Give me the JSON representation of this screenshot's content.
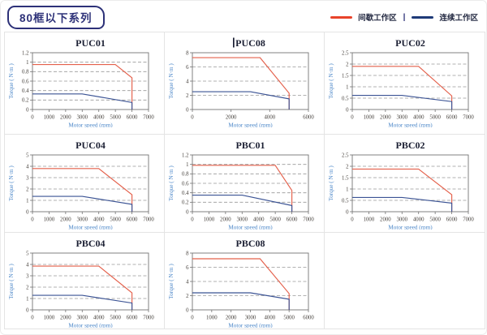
{
  "header": {
    "badge": "80框以下系列",
    "legend": {
      "intermittent_label": "间歇工作区",
      "separator": "|",
      "continuous_label": "连续工作区"
    }
  },
  "colors": {
    "legend_intermittent": "#e8432a",
    "legend_continuous": "#1e3a78",
    "chart_red": "#e4604b",
    "chart_blue": "#3b5394",
    "gridline": "#999999",
    "frame": "#737373",
    "tick_text": "#443f3a",
    "axis_label": "#4a86c8",
    "title_text": "#1b1f33",
    "badge": "#2d3178",
    "cell_border": "#e4e4e4"
  },
  "chart_data": [
    {
      "type": "line",
      "title": "PUC01",
      "xlabel": "Motor speed (rpm)",
      "ylabel": "Torque ( N·m )",
      "xlim": [
        0,
        7000
      ],
      "ylim": [
        0,
        1.2
      ],
      "xticks": [
        0,
        1000,
        2000,
        3000,
        4000,
        5000,
        6000,
        7000
      ],
      "yticks": [
        0,
        0.2,
        0.4,
        0.6,
        0.8,
        1,
        1.2
      ],
      "grid": "dashed-horizontal",
      "legend_position": "page-top-right",
      "series": [
        {
          "name": "间歇工作区",
          "role": "intermittent",
          "points": [
            [
              0,
              0.95
            ],
            [
              5000,
              0.95
            ],
            [
              6000,
              0.67
            ],
            [
              6000,
              0
            ]
          ]
        },
        {
          "name": "连续工作区",
          "role": "continuous",
          "points": [
            [
              0,
              0.33
            ],
            [
              3000,
              0.33
            ],
            [
              6000,
              0.15
            ],
            [
              6000,
              0
            ]
          ]
        }
      ]
    },
    {
      "type": "line",
      "title": "PUC08",
      "text_cursor": true,
      "xlabel": "Motor speed (rpm)",
      "ylabel": "Torque ( N·m )",
      "xlim": [
        0,
        6000
      ],
      "ylim": [
        0,
        8
      ],
      "xticks": [
        0,
        2000,
        4000,
        6000
      ],
      "yticks": [
        0,
        2,
        4,
        6,
        8
      ],
      "grid": "dashed-horizontal",
      "legend_position": "page-top-right",
      "series": [
        {
          "name": "间歇工作区",
          "role": "intermittent",
          "points": [
            [
              0,
              7.3
            ],
            [
              3500,
              7.3
            ],
            [
              5000,
              2.3
            ],
            [
              5000,
              0
            ]
          ]
        },
        {
          "name": "连续工作区",
          "role": "continuous",
          "points": [
            [
              0,
              2.5
            ],
            [
              3000,
              2.5
            ],
            [
              5000,
              1.5
            ],
            [
              5000,
              0
            ]
          ]
        }
      ]
    },
    {
      "type": "line",
      "title": "PUC02",
      "xlabel": "Motor speed (rpm)",
      "ylabel": "Torque ( N·m )",
      "xlim": [
        0,
        7000
      ],
      "ylim": [
        0,
        2.5
      ],
      "xticks": [
        0,
        1000,
        2000,
        3000,
        4000,
        5000,
        6000,
        7000
      ],
      "yticks": [
        0,
        0.5,
        1,
        1.5,
        2,
        2.5
      ],
      "grid": "dashed-horizontal",
      "legend_position": "page-top-right",
      "series": [
        {
          "name": "间歇工作区",
          "role": "intermittent",
          "points": [
            [
              0,
              1.9
            ],
            [
              4000,
              1.9
            ],
            [
              6000,
              0.6
            ],
            [
              6000,
              0
            ]
          ]
        },
        {
          "name": "连续工作区",
          "role": "continuous",
          "points": [
            [
              0,
              0.62
            ],
            [
              3000,
              0.62
            ],
            [
              6000,
              0.35
            ],
            [
              6000,
              0
            ]
          ]
        }
      ]
    },
    {
      "type": "line",
      "title": "PUC04",
      "xlabel": "Motor speed (rpm)",
      "ylabel": "Torque ( N·m )",
      "xlim": [
        0,
        7000
      ],
      "ylim": [
        0,
        5
      ],
      "xticks": [
        0,
        1000,
        2000,
        3000,
        4000,
        5000,
        6000,
        7000
      ],
      "yticks": [
        0,
        1,
        2,
        3,
        4,
        5
      ],
      "grid": "dashed-horizontal",
      "legend_position": "page-top-right",
      "series": [
        {
          "name": "间歇工作区",
          "role": "intermittent",
          "points": [
            [
              0,
              3.8
            ],
            [
              4000,
              3.8
            ],
            [
              6000,
              1.5
            ],
            [
              6000,
              0
            ]
          ]
        },
        {
          "name": "连续工作区",
          "role": "continuous",
          "points": [
            [
              0,
              1.35
            ],
            [
              3000,
              1.35
            ],
            [
              6000,
              0.65
            ],
            [
              6000,
              0
            ]
          ]
        }
      ]
    },
    {
      "type": "line",
      "title": "PBC01",
      "xlabel": "Motor speed (rpm)",
      "ylabel": "Torque ( N·m )",
      "xlim": [
        0,
        7000
      ],
      "ylim": [
        0,
        1.2
      ],
      "xticks": [
        0,
        1000,
        2000,
        3000,
        4000,
        5000,
        6000,
        7000
      ],
      "yticks": [
        0,
        0.2,
        0.4,
        0.6,
        0.8,
        1,
        1.2
      ],
      "grid": "dashed-horizontal",
      "legend_position": "page-top-right",
      "series": [
        {
          "name": "间歇工作区",
          "role": "intermittent",
          "points": [
            [
              0,
              0.98
            ],
            [
              5000,
              0.98
            ],
            [
              6000,
              0.45
            ],
            [
              6000,
              0
            ]
          ]
        },
        {
          "name": "连续工作区",
          "role": "continuous",
          "points": [
            [
              0,
              0.35
            ],
            [
              3000,
              0.35
            ],
            [
              6000,
              0.13
            ],
            [
              6000,
              0
            ]
          ]
        }
      ]
    },
    {
      "type": "line",
      "title": "PBC02",
      "xlabel": "Motor speed (rpm)",
      "ylabel": "Torque ( N·m )",
      "xlim": [
        0,
        7000
      ],
      "ylim": [
        0,
        2.5
      ],
      "xticks": [
        0,
        1000,
        2000,
        3000,
        4000,
        5000,
        6000,
        7000
      ],
      "yticks": [
        0,
        0.5,
        1,
        1.5,
        2,
        2.5
      ],
      "grid": "dashed-horizontal",
      "legend_position": "page-top-right",
      "series": [
        {
          "name": "间歇工作区",
          "role": "intermittent",
          "points": [
            [
              0,
              1.88
            ],
            [
              4000,
              1.88
            ],
            [
              6000,
              0.75
            ],
            [
              6000,
              0
            ]
          ]
        },
        {
          "name": "连续工作区",
          "role": "continuous",
          "points": [
            [
              0,
              0.63
            ],
            [
              3000,
              0.63
            ],
            [
              6000,
              0.38
            ],
            [
              6000,
              0
            ]
          ]
        }
      ]
    },
    {
      "type": "line",
      "title": "PBC04",
      "xlabel": "Motor speed (rpm)",
      "ylabel": "Torque ( N·m )",
      "xlim": [
        0,
        7000
      ],
      "ylim": [
        0,
        5
      ],
      "xticks": [
        0,
        1000,
        2000,
        3000,
        4000,
        5000,
        6000,
        7000
      ],
      "yticks": [
        0,
        1,
        2,
        3,
        4,
        5
      ],
      "grid": "dashed-horizontal",
      "legend_position": "page-top-right",
      "series": [
        {
          "name": "间歇工作区",
          "role": "intermittent",
          "points": [
            [
              0,
              3.85
            ],
            [
              4000,
              3.85
            ],
            [
              6000,
              1.5
            ],
            [
              6000,
              0
            ]
          ]
        },
        {
          "name": "连续工作区",
          "role": "continuous",
          "points": [
            [
              0,
              1.28
            ],
            [
              3000,
              1.28
            ],
            [
              6000,
              0.6
            ],
            [
              6000,
              0
            ]
          ]
        }
      ]
    },
    {
      "type": "line",
      "title": "PBC08",
      "xlabel": "Motor speed (rpm)",
      "ylabel": "Torque ( N·m )",
      "xlim": [
        0,
        6000
      ],
      "ylim": [
        0,
        8
      ],
      "xticks": [
        0,
        1000,
        2000,
        3000,
        4000,
        5000,
        6000
      ],
      "yticks": [
        0,
        2,
        4,
        6,
        8
      ],
      "grid": "dashed-horizontal",
      "legend_position": "page-top-right",
      "series": [
        {
          "name": "间歇工作区",
          "role": "intermittent",
          "points": [
            [
              0,
              7.2
            ],
            [
              3500,
              7.2
            ],
            [
              5000,
              2.3
            ],
            [
              5000,
              0
            ]
          ]
        },
        {
          "name": "连续工作区",
          "role": "continuous",
          "points": [
            [
              0,
              2.4
            ],
            [
              3000,
              2.4
            ],
            [
              5000,
              1.5
            ],
            [
              5000,
              0
            ]
          ]
        }
      ]
    }
  ]
}
